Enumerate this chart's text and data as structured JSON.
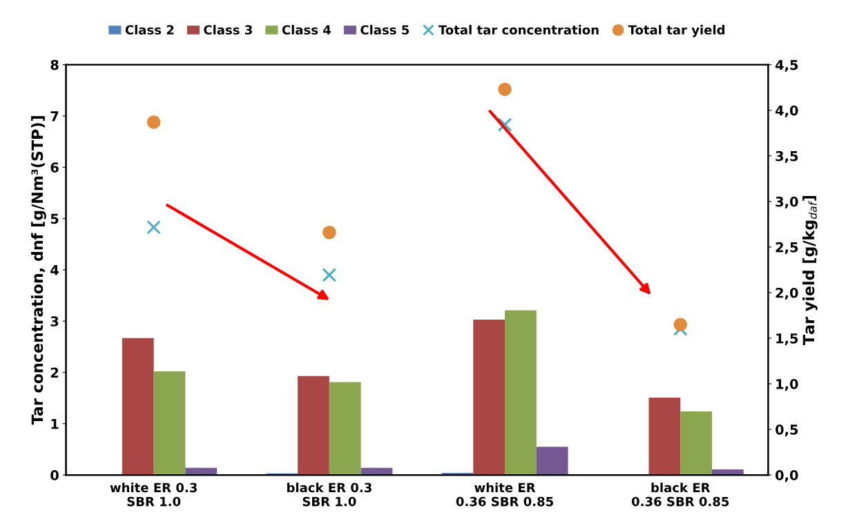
{
  "chart_data": {
    "type": "bar",
    "categories": [
      "white ER 0.3\nSBR 1.0",
      "black ER 0.3\nSBR 1.0",
      "white ER\n0.36 SBR 0.85",
      "black ER\n0.36 SBR 0.85"
    ],
    "ylabel": "Tar concentration, dnf [g/Nm³(STP)]",
    "y2label": "Tar yield [g/kg$_{daf}$]",
    "ylim": [
      0,
      8
    ],
    "yticks": [
      0,
      1,
      2,
      3,
      4,
      5,
      6,
      7,
      8
    ],
    "y2lim": [
      0,
      4.5
    ],
    "y2ticks": [
      {
        "value": 0,
        "label": "0,0"
      },
      {
        "value": 0.5,
        "label": "0,5"
      },
      {
        "value": 1,
        "label": "1,0"
      },
      {
        "value": 1.5,
        "label": "1,5"
      },
      {
        "value": 2,
        "label": "2,0"
      },
      {
        "value": 2.5,
        "label": "2,5"
      },
      {
        "value": 3,
        "label": "3,0"
      },
      {
        "value": 3.5,
        "label": "3,5"
      },
      {
        "value": 4,
        "label": "4,0"
      },
      {
        "value": 4.5,
        "label": "4,5"
      }
    ],
    "grid": false,
    "legend": "top",
    "series": [
      {
        "name": "Class 2",
        "color": "#4f81bd",
        "values": [
          0.01,
          0.03,
          0.04,
          0
        ]
      },
      {
        "name": "Class 3",
        "color": "#aa4644",
        "values": [
          2.67,
          1.93,
          3.03,
          1.51
        ]
      },
      {
        "name": "Class 4",
        "color": "#8aa64e",
        "values": [
          2.02,
          1.81,
          3.21,
          1.24
        ]
      },
      {
        "name": "Class 5",
        "color": "#735893",
        "values": [
          0.14,
          0.14,
          0.55,
          0.11
        ]
      },
      {
        "name": "Total tar concentration",
        "type": "scatter",
        "marker": "cross",
        "color": "#4bacc6",
        "values": [
          4.83,
          3.9,
          6.83,
          2.85
        ]
      },
      {
        "name": "Total tar yield",
        "type": "scatter",
        "marker": "circle",
        "color": "#e08a3c",
        "axis": "y2",
        "values": [
          3.87,
          2.66,
          4.23,
          1.65
        ]
      }
    ]
  }
}
